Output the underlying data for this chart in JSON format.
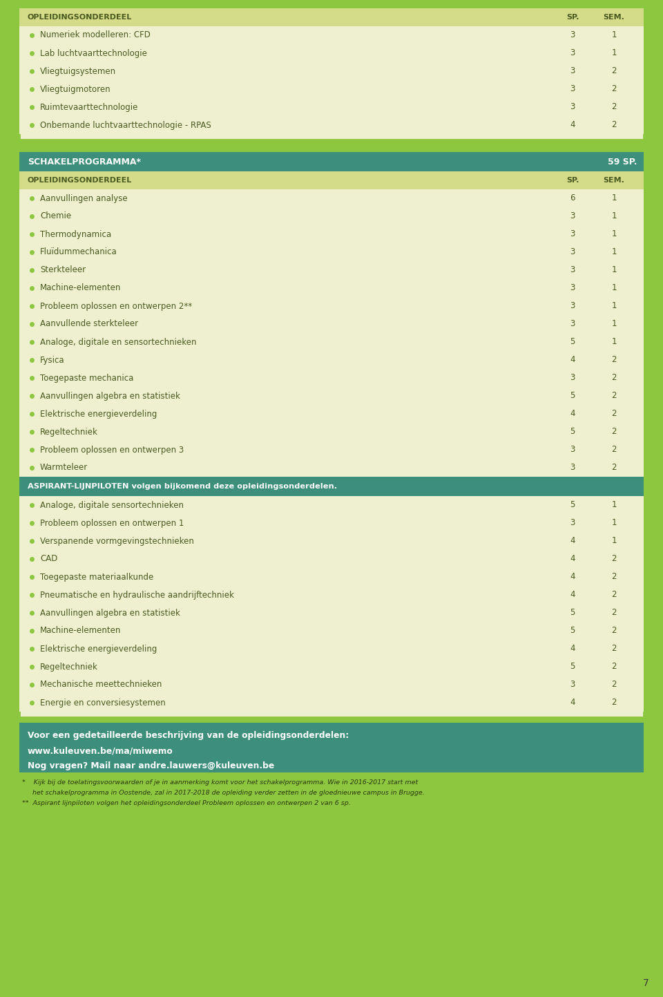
{
  "bg_color": "#8dc63f",
  "content_bg": "#f0f2d0",
  "table_bg": "#eef0d0",
  "header_bg": "#d4dc8a",
  "dark_header_bg": "#3d8f7c",
  "text_color": "#3a5a1a",
  "dark_text": "#4a5a20",
  "bullet_color": "#8dc63f",
  "section1_title": "OPLEIDINGSONDERDEEL",
  "section1_sp": "SP.",
  "section1_sem": "SEM.",
  "section1_rows": [
    [
      "Numeriek modelleren: CFD",
      "3",
      "1"
    ],
    [
      "Lab luchtvaarttechnologie",
      "3",
      "1"
    ],
    [
      "Vliegtuigsystemen",
      "3",
      "2"
    ],
    [
      "Vliegtuigmotoren",
      "3",
      "2"
    ],
    [
      "Ruimtevaarttechnologie",
      "3",
      "2"
    ],
    [
      "Onbemande luchtvaarttechnologie - RPAS",
      "4",
      "2"
    ]
  ],
  "section2_header": "SCHAKELPROGRAMMA*",
  "section2_sp": "59 SP.",
  "section2_col_title": "OPLEIDINGSONDERDEEL",
  "section2_sp_col": "SP.",
  "section2_sem_col": "SEM.",
  "section2_rows": [
    [
      "Aanvullingen analyse",
      "6",
      "1"
    ],
    [
      "Chemie",
      "3",
      "1"
    ],
    [
      "Thermodynamica",
      "3",
      "1"
    ],
    [
      "Fluïdummechanica",
      "3",
      "1"
    ],
    [
      "Sterkteleer",
      "3",
      "1"
    ],
    [
      "Machine-elementen",
      "3",
      "1"
    ],
    [
      "Probleem oplossen en ontwerpen 2**",
      "3",
      "1"
    ],
    [
      "Aanvullende sterkteleer",
      "3",
      "1"
    ],
    [
      "Analoge, digitale en sensortechnieken",
      "5",
      "1"
    ],
    [
      "Fysica",
      "4",
      "2"
    ],
    [
      "Toegepaste mechanica",
      "3",
      "2"
    ],
    [
      "Aanvullingen algebra en statistiek",
      "5",
      "2"
    ],
    [
      "Elektrische energieverdeling",
      "4",
      "2"
    ],
    [
      "Regeltechniek",
      "5",
      "2"
    ],
    [
      "Probleem oplossen en ontwerpen 3",
      "3",
      "2"
    ],
    [
      "Warmteleer",
      "3",
      "2"
    ]
  ],
  "aspirant_header": "ASPIRANT-LIJNPILOTEN volgen bijkomend deze opleidingsonderdelen.",
  "aspirant_rows": [
    [
      "Analoge, digitale sensortechnieken",
      "5",
      "1"
    ],
    [
      "Probleem oplossen en ontwerpen 1",
      "3",
      "1"
    ],
    [
      "Verspanende vormgevingstechnieken",
      "4",
      "1"
    ],
    [
      "CAD",
      "4",
      "2"
    ],
    [
      "Toegepaste materiaalkunde",
      "4",
      "2"
    ],
    [
      "Pneumatische en hydraulische aandrijftechniek",
      "4",
      "2"
    ],
    [
      "Aanvullingen algebra en statistiek",
      "5",
      "2"
    ],
    [
      "Machine-elementen",
      "5",
      "2"
    ],
    [
      "Elektrische energieverdeling",
      "4",
      "2"
    ],
    [
      "Regeltechniek",
      "5",
      "2"
    ],
    [
      "Mechanische meettechnieken",
      "3",
      "2"
    ],
    [
      "Energie en conversiesystemen",
      "4",
      "2"
    ]
  ],
  "footer_bg": "#3d8f7c",
  "footer_lines": [
    "Voor een gedetailleerde beschrijving van de opleidingsonderdelen:",
    "www.kuleuven.be/ma/miwemo",
    "Nog vragen? Mail naar andre.lauwers@kuleuven.be"
  ],
  "footnote_lines": [
    "*    Kijk bij de toelatingsvoorwaarden of je in aanmerking komt voor het schakelprogramma. Wie in 2016-2017 start met",
    "     het schakelprogramma in Oostende, zal in 2017-2018 de opleiding verder zetten in de gloednieuwe campus in Brugge.",
    "**  Aspirant lijnpiloten volgen het opleidingsonderdeel Probleem oplossen en ontwerpen 2 van 6 sp."
  ],
  "page_num": "7"
}
